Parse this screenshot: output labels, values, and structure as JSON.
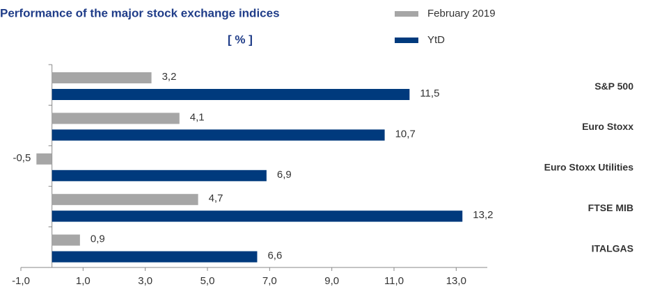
{
  "chart_data": {
    "type": "bar",
    "orientation": "horizontal",
    "title": "Performance of the major stock exchange indices",
    "subtitle": "[ % ]",
    "categories": [
      "S&P 500",
      "Euro Stoxx",
      "Euro Stoxx Utilities",
      "FTSE MIB",
      "ITALGAS"
    ],
    "series": [
      {
        "name": "February 2019",
        "color": "#a6a6a6",
        "values": [
          3.2,
          4.1,
          -0.5,
          4.7,
          0.9
        ],
        "value_labels": [
          "3,2",
          "4,1",
          "-0,5",
          "4,7",
          "0,9"
        ]
      },
      {
        "name": "YtD",
        "color": "#003a7d",
        "values": [
          11.5,
          10.7,
          6.9,
          13.2,
          6.6
        ],
        "value_labels": [
          "11,5",
          "10,7",
          "6,9",
          "13,2",
          "6,6"
        ]
      }
    ],
    "xlim": [
      -1,
      14
    ],
    "xticks": [
      {
        "value": -1,
        "label": "-1,0"
      },
      {
        "value": 1,
        "label": "1,0"
      },
      {
        "value": 3,
        "label": "3,0"
      },
      {
        "value": 5,
        "label": "5,0"
      },
      {
        "value": 7,
        "label": "7,0"
      },
      {
        "value": 9,
        "label": "9,0"
      },
      {
        "value": 11,
        "label": "11,0"
      },
      {
        "value": 13,
        "label": "13,0"
      }
    ],
    "legend": "top-right",
    "grid": false
  }
}
